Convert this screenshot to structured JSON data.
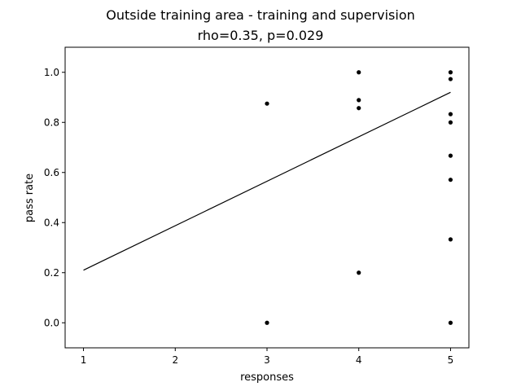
{
  "chart_data": {
    "type": "scatter",
    "title": "Outside training area - training and supervision",
    "subtitle": "rho=0.35, p=0.029",
    "xlabel": "responses",
    "ylabel": "pass rate",
    "xlim": [
      0.8,
      5.2
    ],
    "ylim": [
      -0.1,
      1.1
    ],
    "xticks": [
      1,
      2,
      3,
      4,
      5
    ],
    "yticks": [
      0.0,
      0.2,
      0.4,
      0.6,
      0.8,
      1.0
    ],
    "ytick_labels": [
      "0.0",
      "0.2",
      "0.4",
      "0.6",
      "0.8",
      "1.0"
    ],
    "grid": false,
    "points": [
      {
        "x": 3,
        "y": 0.875
      },
      {
        "x": 3,
        "y": 0.0
      },
      {
        "x": 4,
        "y": 1.0
      },
      {
        "x": 4,
        "y": 0.889
      },
      {
        "x": 4,
        "y": 0.857
      },
      {
        "x": 4,
        "y": 0.2
      },
      {
        "x": 5,
        "y": 1.0
      },
      {
        "x": 5,
        "y": 0.973
      },
      {
        "x": 5,
        "y": 0.833
      },
      {
        "x": 5,
        "y": 0.8
      },
      {
        "x": 5,
        "y": 0.667
      },
      {
        "x": 5,
        "y": 0.571
      },
      {
        "x": 5,
        "y": 0.333
      },
      {
        "x": 5,
        "y": 0.0
      }
    ],
    "fit_line": {
      "x": [
        1,
        5
      ],
      "y": [
        0.21,
        0.92
      ]
    },
    "colors": {
      "points": "#000000",
      "line": "#000000"
    }
  }
}
